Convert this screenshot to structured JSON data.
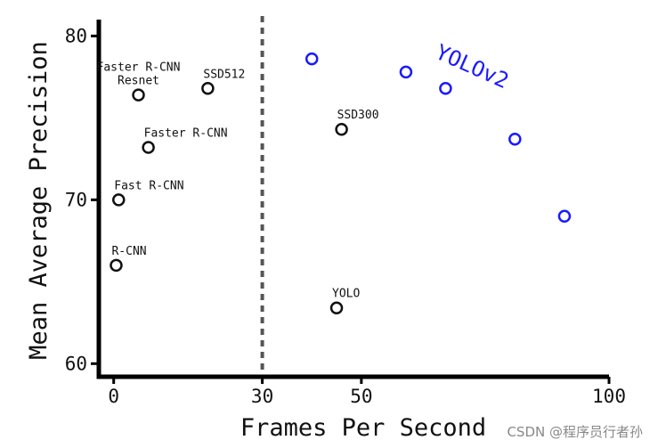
{
  "chart_data": {
    "type": "scatter",
    "xlabel": "Frames Per Second",
    "ylabel": "Mean Average Precision",
    "xlim": [
      -3,
      100
    ],
    "ylim": [
      59.2,
      81
    ],
    "x_ticks": [
      0,
      30,
      50,
      100
    ],
    "y_ticks": [
      60,
      70,
      80
    ],
    "reference_line": {
      "x": 30,
      "style": "dashed"
    },
    "series": [
      {
        "color": "#111111",
        "points": [
          {
            "x": 0.5,
            "y": 66.0,
            "label": "R-CNN"
          },
          {
            "x": 1,
            "y": 70.0,
            "label": "Fast R-CNN"
          },
          {
            "x": 7,
            "y": 73.2,
            "label": "Faster R-CNN"
          },
          {
            "x": 5,
            "y": 76.4,
            "label": "Faster R-CNN\nResnet"
          },
          {
            "x": 19,
            "y": 76.8,
            "label": "SSD512"
          },
          {
            "x": 46,
            "y": 74.3,
            "label": "SSD300"
          },
          {
            "x": 45,
            "y": 63.4,
            "label": "YOLO"
          }
        ]
      },
      {
        "name": "YOLOv2",
        "color": "#1a1aff",
        "points": [
          {
            "x": 40,
            "y": 78.6
          },
          {
            "x": 59,
            "y": 77.8
          },
          {
            "x": 67,
            "y": 76.8
          },
          {
            "x": 81,
            "y": 73.7
          },
          {
            "x": 91,
            "y": 69.0
          }
        ]
      }
    ]
  },
  "watermark": "CSDN @程序员行者孙"
}
